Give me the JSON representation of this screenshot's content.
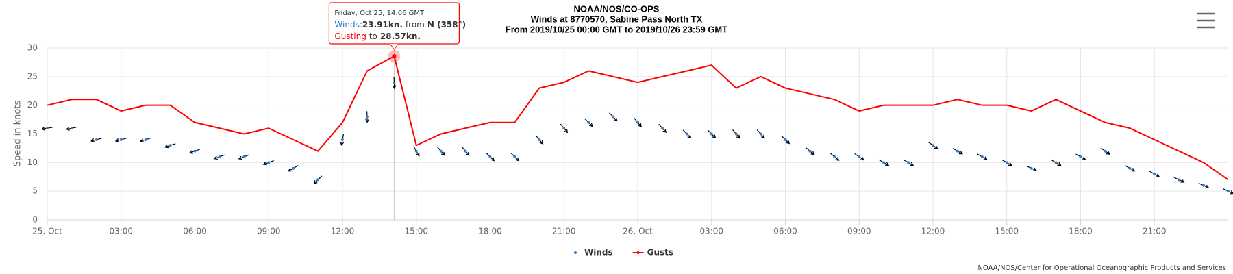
{
  "chart_data": {
    "type": "line",
    "title": "NOAA/NOS/CO-OPS",
    "subtitle": "Winds at 8770570, Sabine Pass North TX",
    "subtitle2": "From 2019/10/25 00:00 GMT to 2019/10/26 23:59 GMT",
    "ylabel": "Speed in knots",
    "credits": "NOAA/NOS/Center for Operational Oceanographic Products and Services",
    "x": [
      0,
      1,
      2,
      3,
      4,
      5,
      6,
      7,
      8,
      9,
      10,
      11,
      12,
      13,
      14.1,
      15,
      16,
      17,
      18,
      19,
      20,
      21,
      22,
      23,
      24,
      25,
      26,
      27,
      28,
      29,
      30,
      31,
      32,
      33,
      34,
      35,
      36,
      37,
      38,
      39,
      40,
      41,
      42,
      43,
      44,
      45,
      46,
      47,
      48
    ],
    "series": [
      {
        "name": "Winds",
        "color": "#2f7ed8",
        "values": [
          16,
          16,
          14,
          14,
          14,
          13,
          12,
          11,
          11,
          10,
          9,
          7,
          14,
          18,
          23.91,
          12,
          12,
          12,
          11,
          11,
          14,
          16,
          17,
          18,
          17,
          16,
          15,
          15,
          15,
          15,
          14,
          12,
          11,
          11,
          10,
          10,
          13,
          12,
          11,
          10,
          9,
          10,
          11,
          12,
          9,
          8,
          7,
          6,
          5
        ],
        "directions": [
          80,
          78,
          75,
          75,
          72,
          72,
          70,
          70,
          68,
          70,
          60,
          45,
          10,
          358,
          358,
          330,
          320,
          320,
          315,
          315,
          320,
          320,
          315,
          315,
          320,
          318,
          315,
          315,
          320,
          318,
          315,
          310,
          310,
          305,
          300,
          300,
          305,
          300,
          300,
          300,
          295,
          300,
          300,
          305,
          300,
          300,
          295,
          295,
          295
        ]
      },
      {
        "name": "Gusts",
        "color": "#ff0000",
        "values": [
          20,
          21,
          21,
          19,
          20,
          20,
          17,
          16,
          15,
          16,
          14,
          12,
          17,
          26,
          28.57,
          13,
          15,
          16,
          17,
          17,
          23,
          24,
          26,
          25,
          24,
          25,
          26,
          27,
          23,
          25,
          23,
          22,
          21,
          19,
          20,
          20,
          20,
          21,
          20,
          20,
          19,
          21,
          19,
          17,
          16,
          14,
          12,
          10,
          7
        ]
      }
    ],
    "xlim": [
      0,
      48
    ],
    "xticks": [
      {
        "value": 0,
        "label": "25. Oct"
      },
      {
        "value": 3,
        "label": "03:00"
      },
      {
        "value": 6,
        "label": "06:00"
      },
      {
        "value": 9,
        "label": "09:00"
      },
      {
        "value": 12,
        "label": "12:00"
      },
      {
        "value": 15,
        "label": "15:00"
      },
      {
        "value": 18,
        "label": "18:00"
      },
      {
        "value": 21,
        "label": "21:00"
      },
      {
        "value": 24,
        "label": "26. Oct"
      },
      {
        "value": 27,
        "label": "03:00"
      },
      {
        "value": 30,
        "label": "06:00"
      },
      {
        "value": 33,
        "label": "09:00"
      },
      {
        "value": 36,
        "label": "12:00"
      },
      {
        "value": 39,
        "label": "15:00"
      },
      {
        "value": 42,
        "label": "18:00"
      },
      {
        "value": 45,
        "label": "21:00"
      }
    ],
    "ylim": [
      0,
      30
    ],
    "yticks": [
      0,
      5,
      10,
      15,
      20,
      25,
      30
    ],
    "grid": true,
    "tooltip": {
      "date": "Friday, Oct 25, 14:06 GMT",
      "winds_label": "Winds:",
      "winds_value": "23.91kn.",
      "from": "from",
      "direction": "N (358°)",
      "gust_label": "Gusting",
      "to": "to",
      "gust_value": "28.57kn."
    }
  }
}
